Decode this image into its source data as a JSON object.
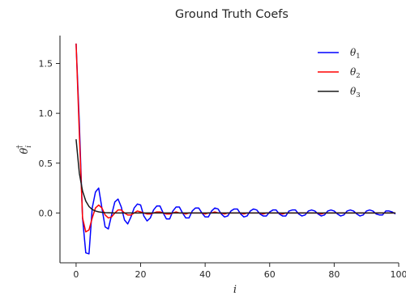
{
  "chart_data": {
    "type": "line",
    "title": "Ground Truth Coefs",
    "xlabel": "i",
    "ylabel_base": "θ",
    "ylabel_sup": "†",
    "ylabel_sub": "i",
    "xlim": [
      -5,
      100
    ],
    "ylim": [
      -0.5,
      1.78
    ],
    "xticks": [
      0,
      20,
      40,
      60,
      80,
      100
    ],
    "yticks": [
      0.0,
      0.5,
      1.0,
      1.5
    ],
    "xtick_labels": [
      "0",
      "20",
      "40",
      "60",
      "80",
      "100"
    ],
    "ytick_labels": [
      "0.0",
      "0.5",
      "1.0",
      "1.5"
    ],
    "grid": false,
    "legend_position": "top-right",
    "series": [
      {
        "name": "θ1",
        "label_base": "θ",
        "label_sub": "1",
        "color": "#0000ff",
        "x": [
          0,
          1,
          2,
          3,
          4,
          5,
          6,
          7,
          8,
          9,
          10,
          11,
          12,
          13,
          14,
          15,
          16,
          17,
          18,
          19,
          20,
          21,
          22,
          23,
          24,
          25,
          26,
          27,
          28,
          29,
          30,
          31,
          32,
          33,
          34,
          35,
          36,
          37,
          38,
          39,
          40,
          41,
          42,
          43,
          44,
          45,
          46,
          47,
          48,
          49,
          50,
          51,
          52,
          53,
          54,
          55,
          56,
          57,
          58,
          59,
          60,
          61,
          62,
          63,
          64,
          65,
          66,
          67,
          68,
          69,
          70,
          71,
          72,
          73,
          74,
          75,
          76,
          77,
          78,
          79,
          80,
          81,
          82,
          83,
          84,
          85,
          86,
          87,
          88,
          89,
          90,
          91,
          92,
          93,
          94,
          95,
          96,
          97,
          98,
          99
        ],
        "values": [
          1.7,
          0.9,
          -0.05,
          -0.4,
          -0.41,
          0.05,
          0.21,
          0.25,
          0.05,
          -0.14,
          -0.16,
          -0.02,
          0.11,
          0.14,
          0.06,
          -0.07,
          -0.11,
          -0.04,
          0.05,
          0.09,
          0.08,
          -0.03,
          -0.08,
          -0.05,
          0.03,
          0.07,
          0.07,
          0.0,
          -0.06,
          -0.06,
          0.02,
          0.06,
          0.06,
          0.0,
          -0.05,
          -0.05,
          0.02,
          0.05,
          0.05,
          0.0,
          -0.04,
          -0.04,
          0.02,
          0.05,
          0.04,
          -0.01,
          -0.04,
          -0.03,
          0.02,
          0.04,
          0.04,
          -0.01,
          -0.04,
          -0.03,
          0.02,
          0.04,
          0.03,
          -0.01,
          -0.03,
          -0.03,
          0.01,
          0.03,
          0.03,
          -0.01,
          -0.03,
          -0.03,
          0.02,
          0.03,
          0.03,
          -0.01,
          -0.03,
          -0.02,
          0.02,
          0.03,
          0.02,
          -0.01,
          -0.03,
          -0.02,
          0.02,
          0.03,
          0.02,
          -0.01,
          -0.03,
          -0.02,
          0.02,
          0.03,
          0.02,
          -0.01,
          -0.03,
          -0.02,
          0.02,
          0.03,
          0.02,
          -0.01,
          -0.02,
          -0.02,
          0.02,
          0.02,
          0.01,
          -0.01
        ]
      },
      {
        "name": "θ2",
        "label_base": "θ",
        "label_sub": "2",
        "color": "#ff0000",
        "x": [
          0,
          1,
          2,
          3,
          4,
          5,
          6,
          7,
          8,
          9,
          10,
          11,
          12,
          13,
          14,
          15,
          16,
          17,
          18,
          19,
          20,
          21,
          22,
          23,
          24,
          25,
          26,
          27,
          28,
          29,
          30,
          31,
          32,
          33,
          34,
          35,
          36,
          37,
          38,
          39,
          40,
          41,
          42,
          43,
          44,
          45,
          46,
          47,
          48,
          49,
          50,
          51,
          52,
          53,
          54,
          55,
          56,
          57,
          58,
          59,
          60,
          61,
          62,
          63,
          64,
          65,
          66,
          67,
          68,
          69,
          70,
          71,
          72,
          73,
          74,
          75,
          76,
          77,
          78,
          79,
          80,
          81,
          82,
          83,
          84,
          85,
          86,
          87,
          88,
          89,
          90,
          91,
          92,
          93,
          94,
          95,
          96,
          97,
          98,
          99
        ],
        "values": [
          1.7,
          0.8,
          -0.05,
          -0.19,
          -0.17,
          -0.05,
          0.05,
          0.08,
          0.05,
          -0.02,
          -0.05,
          -0.04,
          0.0,
          0.03,
          0.03,
          0.0,
          -0.02,
          -0.02,
          0.0,
          0.02,
          0.01,
          0.0,
          -0.01,
          -0.01,
          0.0,
          0.01,
          0.01,
          0.0,
          -0.01,
          -0.01,
          0.0,
          0.01,
          0.0,
          0.0,
          -0.01,
          0.0,
          0.0,
          0.0,
          0.0,
          0.0,
          -0.01,
          0.0,
          0.0,
          0.01,
          0.0,
          0.0,
          -0.01,
          0.0,
          0.0,
          0.0,
          0.0,
          0.0,
          -0.01,
          0.0,
          0.0,
          0.0,
          0.0,
          0.0,
          -0.01,
          0.0,
          0.0,
          0.0,
          0.0,
          0.0,
          -0.01,
          0.0,
          0.0,
          0.0,
          0.0,
          0.0,
          0.0,
          0.0,
          0.0,
          0.0,
          0.0,
          0.0,
          -0.01,
          0.0,
          0.0,
          0.0,
          0.0,
          0.0,
          0.0,
          0.0,
          0.0,
          0.0,
          0.0,
          0.0,
          0.0,
          0.0,
          0.0,
          0.0,
          0.0,
          0.0,
          0.0,
          0.0,
          0.0,
          0.0,
          0.0,
          0.0
        ]
      },
      {
        "name": "θ3",
        "label_base": "θ",
        "label_sub": "3",
        "color": "#1a1a1a",
        "x": [
          0,
          1,
          2,
          3,
          4,
          5,
          6,
          7,
          8,
          9,
          10,
          11,
          12,
          13,
          14,
          15,
          16,
          17,
          18,
          19,
          20,
          21,
          22,
          23,
          24,
          25,
          26,
          27,
          28,
          29,
          30,
          31,
          32,
          33,
          34,
          35,
          36,
          37,
          38,
          39,
          40,
          41,
          42,
          43,
          44,
          45,
          46,
          47,
          48,
          49,
          50,
          51,
          52,
          53,
          54,
          55,
          56,
          57,
          58,
          59,
          60,
          61,
          62,
          63,
          64,
          65,
          66,
          67,
          68,
          69,
          70,
          71,
          72,
          73,
          74,
          75,
          76,
          77,
          78,
          79,
          80,
          81,
          82,
          83,
          84,
          85,
          86,
          87,
          88,
          89,
          90,
          91,
          92,
          93,
          94,
          95,
          96,
          97,
          98,
          99
        ],
        "values": [
          0.74,
          0.4,
          0.22,
          0.12,
          0.065,
          0.035,
          0.02,
          0.011,
          0.006,
          0.003,
          0.002,
          0.001,
          0.0,
          0.0,
          0.0,
          0.0,
          0.0,
          0.0,
          0.0,
          0.0,
          0.0,
          0.0,
          0.0,
          0.0,
          0.0,
          0.0,
          0.0,
          0.0,
          0.0,
          0.0,
          0.0,
          0.0,
          0.0,
          0.0,
          0.0,
          0.0,
          0.0,
          0.0,
          0.0,
          0.0,
          0.0,
          0.0,
          0.0,
          0.0,
          0.0,
          0.0,
          0.0,
          0.0,
          0.0,
          0.0,
          0.0,
          0.0,
          0.0,
          0.0,
          0.0,
          0.0,
          0.0,
          0.0,
          0.0,
          0.0,
          0.0,
          0.0,
          0.0,
          0.0,
          0.0,
          0.0,
          0.0,
          0.0,
          0.0,
          0.0,
          0.0,
          0.0,
          0.0,
          0.0,
          0.0,
          0.0,
          0.0,
          0.0,
          0.0,
          0.0,
          0.0,
          0.0,
          0.0,
          0.0,
          0.0,
          0.0,
          0.0,
          0.0,
          0.0,
          0.0,
          0.0,
          0.0,
          0.0,
          0.0,
          0.0,
          0.0,
          0.0,
          0.0,
          0.0,
          0.0
        ]
      }
    ]
  }
}
